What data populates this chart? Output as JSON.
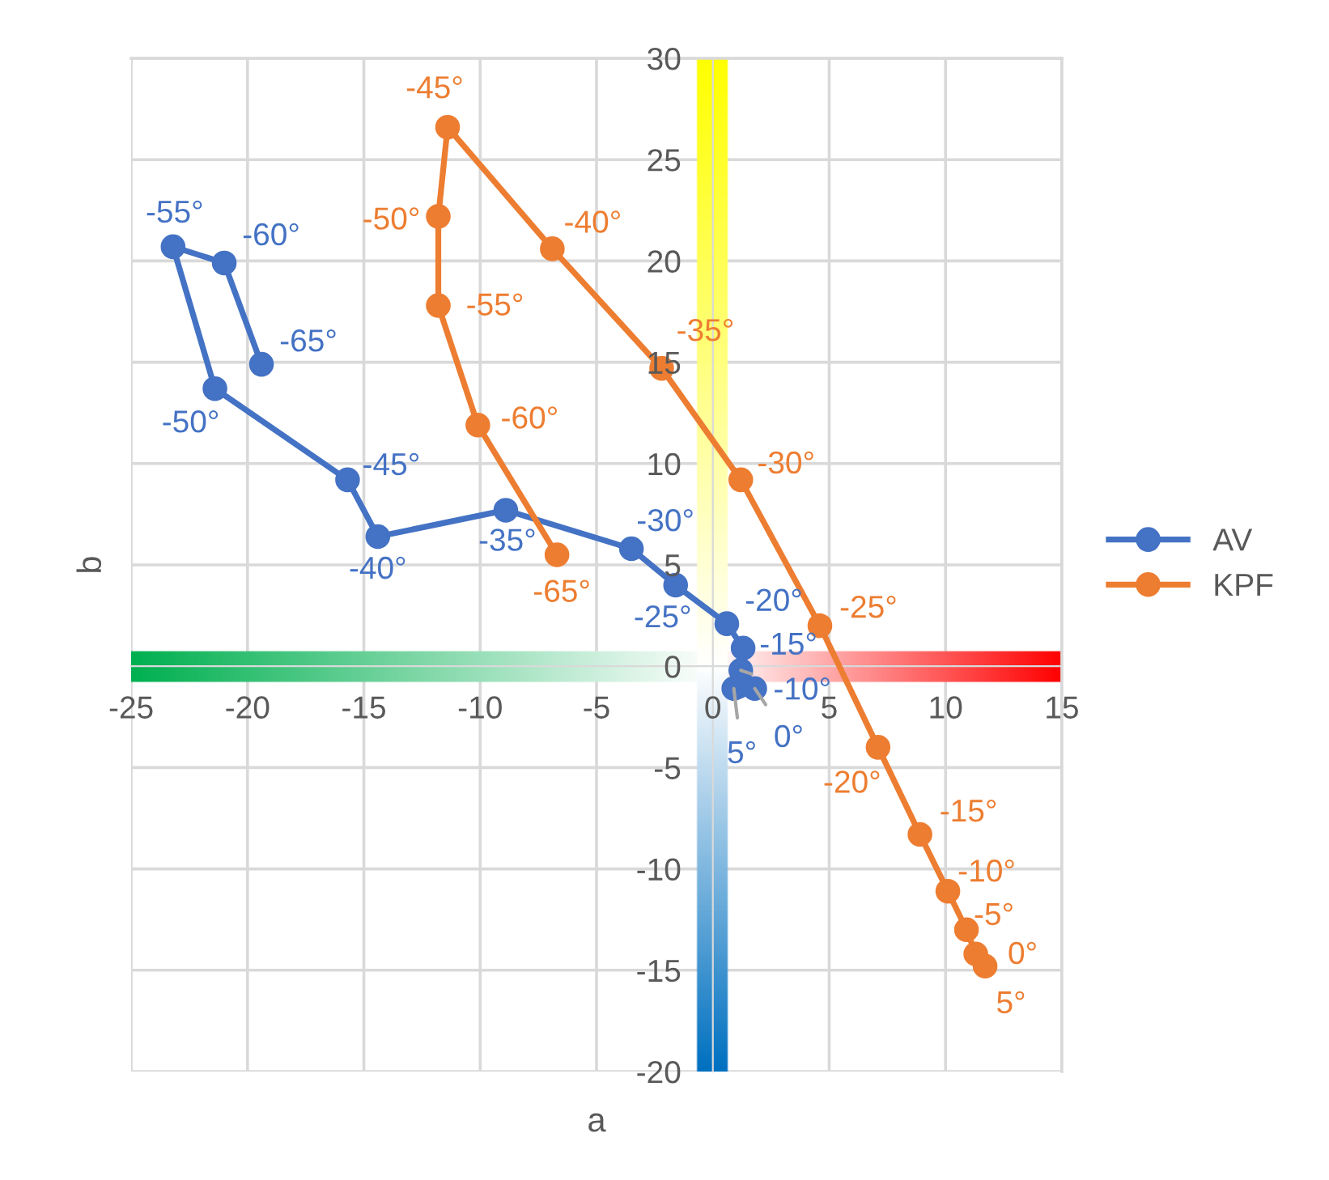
{
  "chart_data": {
    "type": "line",
    "xlabel": "a",
    "ylabel": "b",
    "xlim": [
      -25,
      15
    ],
    "xticks": [
      -25,
      -20,
      -15,
      -10,
      -5,
      0,
      5,
      10,
      15
    ],
    "ylim": [
      -20,
      30
    ],
    "yticks": [
      -20,
      -15,
      -10,
      -5,
      0,
      5,
      10,
      15,
      20,
      25,
      30
    ],
    "grid": true,
    "legend": "right",
    "marker": "circle",
    "line_style": "solid",
    "series": [
      {
        "name": "AV",
        "color": "#4472c4",
        "x": [
          -19.4,
          -21.0,
          -23.2,
          -21.4,
          -15.7,
          -14.4,
          -8.9,
          -3.5,
          -1.6,
          0.6,
          1.3,
          1.2,
          1.1,
          1.8,
          0.9
        ],
        "values": [
          14.9,
          19.9,
          20.7,
          13.7,
          9.2,
          6.4,
          7.7,
          5.8,
          4.0,
          2.1,
          0.9,
          -0.2,
          -1.0,
          -1.1,
          -1.1
        ]
      },
      {
        "name": "KPF",
        "color": "#ed7d31",
        "x": [
          -6.7,
          -10.1,
          -11.8,
          -11.8,
          -11.4,
          -6.9,
          -2.2,
          1.2,
          4.6,
          7.1,
          8.9,
          10.1,
          10.9,
          11.3,
          11.7
        ],
        "values": [
          5.5,
          11.9,
          17.8,
          22.2,
          26.6,
          20.6,
          14.7,
          9.2,
          2.0,
          -4.0,
          -8.3,
          -11.1,
          -13.0,
          -14.2,
          -14.8
        ]
      }
    ],
    "annotations": [
      {
        "text": "-65°",
        "x": -19.4,
        "y": 14.9
      },
      {
        "text": "-60°",
        "x": -21.0,
        "y": 19.9
      },
      {
        "text": "-55°",
        "x": -23.2,
        "y": 20.7
      },
      {
        "text": "-50°",
        "x": -21.4,
        "y": 13.7
      },
      {
        "text": "-45°",
        "x": -15.7,
        "y": 9.2
      },
      {
        "text": "-40°",
        "x": -14.4,
        "y": 6.4
      },
      {
        "text": "-35°",
        "x": -8.9,
        "y": 7.7
      },
      {
        "text": "-30°",
        "x": -3.5,
        "y": 5.8
      },
      {
        "text": "-25°",
        "x": -1.6,
        "y": 4.0
      },
      {
        "text": "-20°",
        "x": 0.6,
        "y": 2.1
      },
      {
        "text": "-15°",
        "x": 1.3,
        "y": 0.9
      },
      {
        "text": "-10°",
        "x": 1.2,
        "y": -0.2
      },
      {
        "text": "0°",
        "x": 1.8,
        "y": -1.1
      },
      {
        "text": "5°",
        "x": 0.9,
        "y": -1.1
      },
      {
        "text": "-65°",
        "x": -6.7,
        "y": 5.5
      },
      {
        "text": "-60°",
        "x": -10.1,
        "y": 11.9
      },
      {
        "text": "-55°",
        "x": -11.8,
        "y": 17.8
      },
      {
        "text": "-50°",
        "x": -11.8,
        "y": 22.2
      },
      {
        "text": "-45°",
        "x": -11.4,
        "y": 26.6
      },
      {
        "text": "-40°",
        "x": -6.9,
        "y": 20.6
      },
      {
        "text": "-35°",
        "x": -2.2,
        "y": 14.7
      },
      {
        "text": "-30°",
        "x": 1.2,
        "y": 9.2
      },
      {
        "text": "-25°",
        "x": 4.6,
        "y": 2.0
      },
      {
        "text": "-20°",
        "x": 7.1,
        "y": -4.0
      },
      {
        "text": "-15°",
        "x": 8.9,
        "y": -8.3
      },
      {
        "text": "-10°",
        "x": 10.1,
        "y": -11.1
      },
      {
        "text": "-5°",
        "x": 10.9,
        "y": -13.0
      },
      {
        "text": "0°",
        "x": 11.3,
        "y": -14.2
      },
      {
        "text": "5°",
        "x": 11.7,
        "y": -14.8
      }
    ]
  }
}
